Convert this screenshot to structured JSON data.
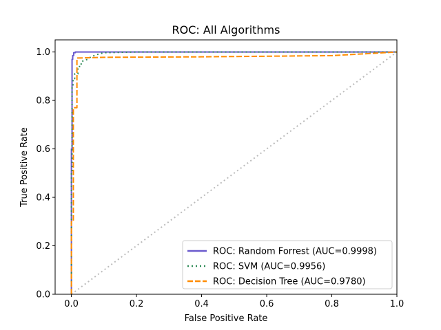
{
  "chart_data": {
    "type": "line",
    "title": "ROC: All Algorithms",
    "xlabel": "False Positive Rate",
    "ylabel": "True Positive Rate",
    "xlim": [
      -0.05,
      1.0
    ],
    "ylim": [
      0.0,
      1.05
    ],
    "xticks": [
      "0.0",
      "0.2",
      "0.4",
      "0.6",
      "0.8",
      "1.0"
    ],
    "yticks": [
      "0.0",
      "0.2",
      "0.4",
      "0.6",
      "0.8",
      "1.0"
    ],
    "grid": false,
    "legend_position": "lower-right",
    "series": [
      {
        "name": "ROC: Random Forrest (AUC=0.9998)",
        "color": "#6a5acd",
        "style": "solid",
        "x": [
          0.0,
          0.0,
          0.002,
          0.002,
          0.004,
          0.004,
          0.007,
          0.007,
          0.012,
          0.012,
          1.0
        ],
        "y": [
          0.0,
          0.6,
          0.6,
          0.97,
          0.97,
          0.985,
          0.985,
          0.997,
          0.997,
          1.0,
          1.0
        ]
      },
      {
        "name": "ROC: SVM (AUC=0.9956)",
        "color": "#2e8b57",
        "style": "dotted",
        "x": [
          0.0,
          0.0,
          0.002,
          0.002,
          0.005,
          0.005,
          0.01,
          0.01,
          0.02,
          0.02,
          0.03,
          0.03,
          0.05,
          0.06,
          0.08,
          0.1,
          0.2,
          1.0
        ],
        "y": [
          0.0,
          0.5,
          0.5,
          0.86,
          0.86,
          0.89,
          0.89,
          0.91,
          0.91,
          0.94,
          0.94,
          0.96,
          0.97,
          0.98,
          0.99,
          0.997,
          1.0,
          1.0
        ]
      },
      {
        "name": "ROC: Decision Tree (AUC=0.9780)",
        "color": "#ff8c00",
        "style": "dashed",
        "x": [
          0.0,
          0.0,
          0.006,
          0.006,
          0.017,
          0.017,
          0.1,
          0.4,
          0.8,
          1.0
        ],
        "y": [
          0.0,
          0.3,
          0.3,
          0.77,
          0.77,
          0.975,
          0.978,
          0.98,
          0.985,
          1.0
        ]
      },
      {
        "name": "",
        "color": "#bbbbbb",
        "style": "dotted",
        "x": [
          0.0,
          1.0
        ],
        "y": [
          0.0,
          1.0
        ]
      }
    ]
  }
}
